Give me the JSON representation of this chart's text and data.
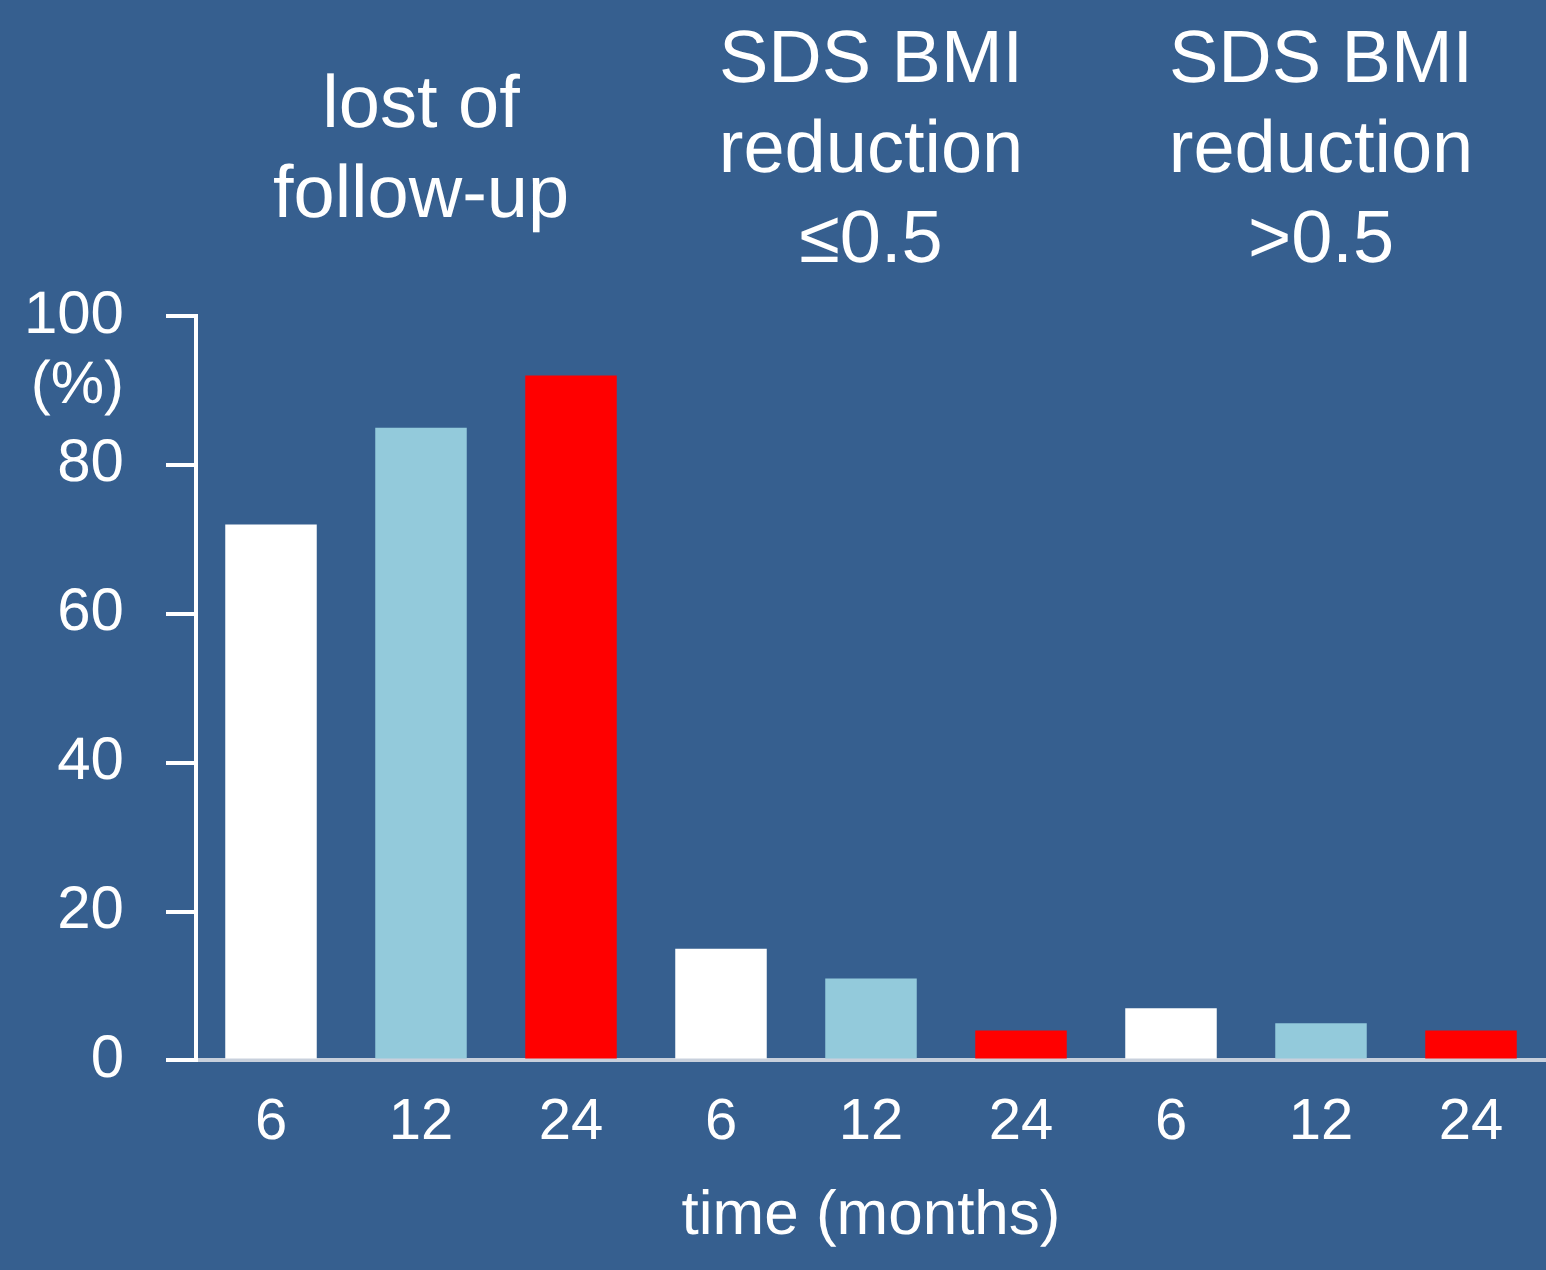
{
  "chart_data": {
    "type": "bar",
    "categories": [
      "6",
      "12",
      "24",
      "6",
      "12",
      "24",
      "6",
      "12",
      "24"
    ],
    "values": [
      72,
      85,
      92,
      15,
      11,
      4,
      7,
      5,
      4
    ],
    "colors": [
      "#ffffff",
      "#93cadb",
      "#ff0000",
      "#ffffff",
      "#93cadb",
      "#ff0000",
      "#ffffff",
      "#93cadb",
      "#ff0000"
    ],
    "ylim": [
      0,
      100
    ],
    "yticks": [
      0,
      20,
      40,
      60,
      80,
      100
    ],
    "ylabel": "(%)",
    "xlabel": "time (months)",
    "annotations": [
      "lost of follow-up",
      "SDS BMI reduction ≤0.5",
      "SDS BMI reduction >0.5"
    ]
  }
}
